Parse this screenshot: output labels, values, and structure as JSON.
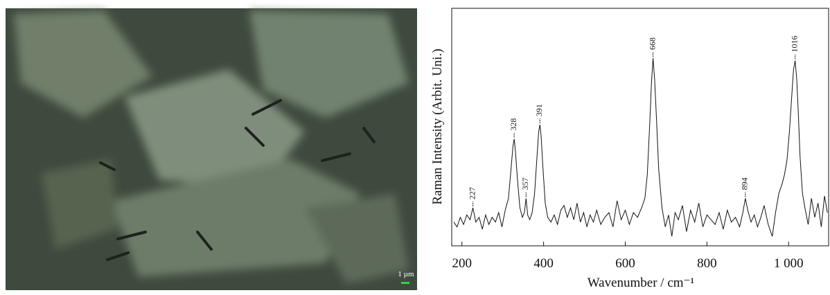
{
  "image": {
    "scale_bar": "1 µm"
  },
  "chart_data": {
    "type": "line",
    "x_label": "Wavenumber / cm⁻¹",
    "y_label": "Raman Intensity (Arbit. Uni.)",
    "x": [
      180,
      188,
      196,
      204,
      212,
      220,
      227,
      234,
      242,
      250,
      258,
      266,
      274,
      282,
      290,
      298,
      306,
      314,
      320,
      325,
      328,
      331,
      336,
      342,
      348,
      353,
      357,
      361,
      366,
      372,
      378,
      384,
      388,
      391,
      394,
      398,
      404,
      410,
      418,
      426,
      434,
      442,
      450,
      458,
      466,
      474,
      482,
      490,
      498,
      506,
      514,
      522,
      530,
      540,
      550,
      560,
      570,
      580,
      590,
      600,
      610,
      620,
      630,
      640,
      648,
      654,
      660,
      664,
      668,
      672,
      676,
      682,
      690,
      698,
      706,
      714,
      722,
      730,
      740,
      750,
      760,
      770,
      780,
      790,
      800,
      810,
      820,
      830,
      840,
      850,
      860,
      870,
      880,
      888,
      894,
      900,
      908,
      916,
      924,
      932,
      940,
      950,
      960,
      968,
      976,
      984,
      990,
      996,
      1002,
      1008,
      1012,
      1016,
      1020,
      1024,
      1028,
      1034,
      1040,
      1048,
      1056,
      1064,
      1072,
      1080,
      1088,
      1095
    ],
    "series": [
      {
        "color": "#111111",
        "values": [
          10,
          8,
          12,
          9,
          13,
          11,
          16,
          10,
          12,
          7,
          13,
          9,
          12,
          10,
          14,
          8,
          15,
          20,
          32,
          42,
          45,
          40,
          28,
          16,
          12,
          14,
          20,
          13,
          11,
          14,
          22,
          38,
          48,
          51,
          46,
          34,
          18,
          12,
          10,
          13,
          9,
          15,
          17,
          12,
          16,
          11,
          18,
          10,
          14,
          8,
          13,
          10,
          15,
          9,
          12,
          14,
          8,
          19,
          11,
          15,
          9,
          14,
          12,
          16,
          20,
          30,
          52,
          68,
          79,
          70,
          55,
          32,
          16,
          8,
          13,
          4,
          14,
          11,
          17,
          6,
          15,
          10,
          18,
          8,
          13,
          11,
          9,
          14,
          7,
          15,
          10,
          12,
          8,
          14,
          20,
          15,
          10,
          13,
          8,
          12,
          17,
          9,
          4,
          14,
          22,
          26,
          30,
          36,
          48,
          64,
          74,
          78,
          70,
          55,
          38,
          22,
          16,
          9,
          20,
          12,
          18,
          8,
          21,
          14
        ]
      }
    ],
    "peak_labels": [
      227,
      328,
      357,
      391,
      668,
      894,
      1016
    ],
    "xlim": [
      175,
      1098
    ],
    "ylim": [
      0,
      100
    ],
    "xticks": [
      200,
      400,
      600,
      800,
      {
        "value": 1000,
        "label": "1 000"
      }
    ]
  }
}
